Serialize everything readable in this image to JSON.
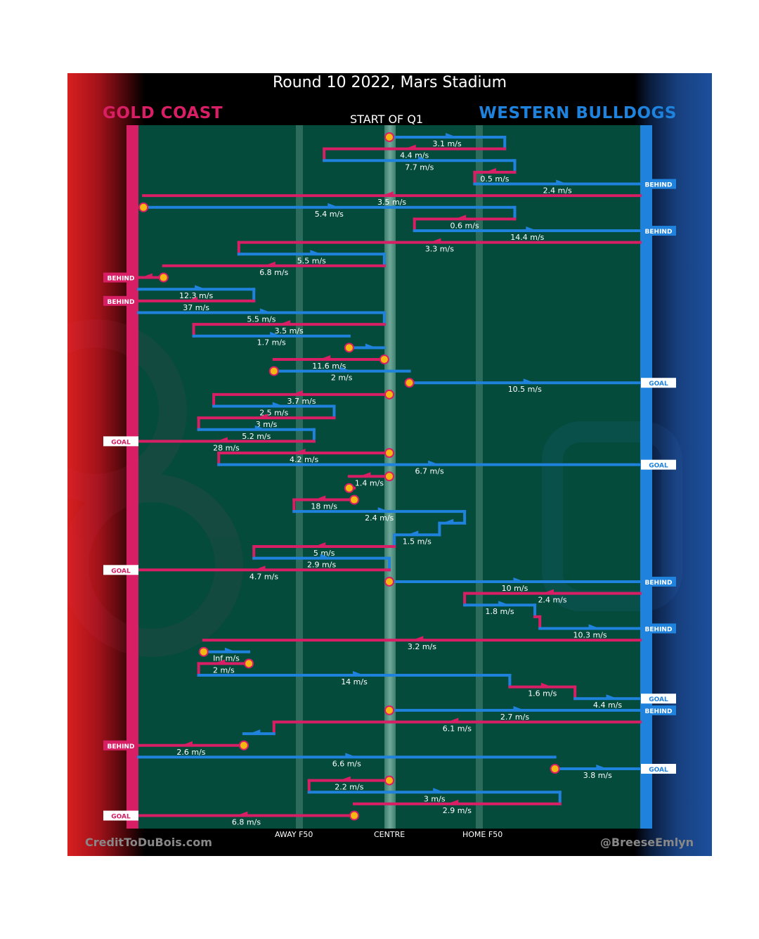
{
  "title": "Round 10 2022, Mars Stadium",
  "teams": {
    "left": "GOLD COAST",
    "right": "WESTERN BULLDOGS"
  },
  "start_label": "START OF Q1",
  "axis_labels": {
    "away": "AWAY F50",
    "centre": "CENTRE",
    "home": "HOME F50"
  },
  "credits": {
    "left": "CreditToDuBois.com",
    "right": "@BreeseEmlyn"
  },
  "colors": {
    "gold_coast": "#d81e64",
    "western_bulldogs": "#1f82dc",
    "field": "#044b3c",
    "marker": "#f5b813"
  },
  "chart_data": {
    "type": "chain-diagram",
    "x_axis": "field position (0 = Gold Coast end, 100 = Western Bulldogs end)",
    "x_ticks": [
      {
        "label": "AWAY F50",
        "x": 32
      },
      {
        "label": "CENTRE",
        "x": 50
      },
      {
        "label": "HOME F50",
        "x": 68
      }
    ],
    "segments": [
      {
        "team": "WB",
        "from": 50,
        "to": 73,
        "speed": "3.1 m/s",
        "start_marker": true
      },
      {
        "team": "GC",
        "from": 73,
        "to": 37,
        "speed": "4.4 m/s"
      },
      {
        "team": "WB",
        "from": 37,
        "to": 75,
        "speed": "7.7 m/s"
      },
      {
        "team": "GC",
        "from": 75,
        "to": 67,
        "speed": "0.5 m/s"
      },
      {
        "team": "WB",
        "from": 67,
        "to": 100,
        "speed": "2.4 m/s",
        "outcome": "BEHIND"
      },
      {
        "team": "GC",
        "from": 100,
        "to": 1,
        "speed": "3.5 m/s"
      },
      {
        "team": "WB",
        "from": 1,
        "to": 75,
        "speed": "5.4 m/s",
        "start_marker": true
      },
      {
        "team": "GC",
        "from": 75,
        "to": 55,
        "speed": "0.6 m/s"
      },
      {
        "team": "WB",
        "from": 55,
        "to": 100,
        "speed": "14.4 m/s",
        "outcome": "BEHIND"
      },
      {
        "team": "GC",
        "from": 100,
        "to": 20,
        "speed": "3.3 m/s"
      },
      {
        "team": "WB",
        "from": 20,
        "to": 49,
        "speed": "5.5 m/s"
      },
      {
        "team": "GC",
        "from": 49,
        "to": 5,
        "speed": "6.8 m/s"
      },
      {
        "team": "GC",
        "from": 5,
        "to": 0,
        "speed": "",
        "outcome": "BEHIND",
        "start_marker": true
      },
      {
        "team": "WB",
        "from": 0,
        "to": 23,
        "speed": "12.3 m/s"
      },
      {
        "team": "GC",
        "from": 23,
        "to": 0,
        "speed": "37 m/s",
        "outcome": "BEHIND"
      },
      {
        "team": "WB",
        "from": 0,
        "to": 49,
        "speed": "5.5 m/s"
      },
      {
        "team": "GC",
        "from": 49,
        "to": 11,
        "speed": "3.5 m/s"
      },
      {
        "team": "WB",
        "from": 11,
        "to": 42,
        "speed": "1.7 m/s"
      },
      {
        "team": "WB",
        "from": 42,
        "to": 49,
        "speed": "",
        "start_marker": true
      },
      {
        "team": "GC",
        "from": 49,
        "to": 27,
        "speed": "11.6 m/s",
        "start_marker": true
      },
      {
        "team": "WB",
        "from": 27,
        "to": 54,
        "speed": "2 m/s",
        "start_marker": true
      },
      {
        "team": "WB",
        "from": 54,
        "to": 100,
        "speed": "10.5 m/s",
        "outcome": "GOAL",
        "start_marker": true
      },
      {
        "team": "GC",
        "from": 50,
        "to": 15,
        "speed": "3.7 m/s",
        "start_marker": true
      },
      {
        "team": "WB",
        "from": 15,
        "to": 39,
        "speed": "2.5 m/s"
      },
      {
        "team": "GC",
        "from": 39,
        "to": 12,
        "speed": "3 m/s"
      },
      {
        "team": "WB",
        "from": 12,
        "to": 35,
        "speed": "5.2 m/s"
      },
      {
        "team": "GC",
        "from": 35,
        "to": 0,
        "speed": "28 m/s",
        "outcome": "GOAL"
      },
      {
        "team": "GC",
        "from": 50,
        "to": 16,
        "speed": "4.2 m/s",
        "start_marker": true
      },
      {
        "team": "WB",
        "from": 16,
        "to": 100,
        "speed": "6.7 m/s",
        "outcome": "GOAL"
      },
      {
        "team": "GC",
        "from": 50,
        "to": 42,
        "speed": "1.4 m/s",
        "start_marker": true
      },
      {
        "team": "GC",
        "from": 42,
        "to": 43,
        "speed": "",
        "start_marker": true
      },
      {
        "team": "GC",
        "from": 43,
        "to": 31,
        "speed": "18 m/s",
        "start_marker": true
      },
      {
        "team": "WB",
        "from": 31,
        "to": 65,
        "speed": "2.4 m/s"
      },
      {
        "team": "WB",
        "from": 65,
        "to": 60,
        "speed": ""
      },
      {
        "team": "WB",
        "from": 60,
        "to": 51,
        "speed": "1.5 m/s"
      },
      {
        "team": "GC",
        "from": 51,
        "to": 23,
        "speed": "5 m/s"
      },
      {
        "team": "WB",
        "from": 23,
        "to": 50,
        "speed": "2.9 m/s"
      },
      {
        "team": "GC",
        "from": 50,
        "to": 0,
        "speed": "4.7 m/s",
        "outcome": "GOAL"
      },
      {
        "team": "WB",
        "from": 50,
        "to": 100,
        "speed": "10 m/s",
        "outcome": "BEHIND",
        "start_marker": true
      },
      {
        "team": "GC",
        "from": 100,
        "to": 65,
        "speed": "2.4 m/s"
      },
      {
        "team": "WB",
        "from": 65,
        "to": 79,
        "speed": "1.8 m/s"
      },
      {
        "team": "GC",
        "from": 79,
        "to": 80,
        "speed": ""
      },
      {
        "team": "WB",
        "from": 80,
        "to": 100,
        "speed": "10.3 m/s",
        "outcome": "BEHIND"
      },
      {
        "team": "GC",
        "from": 100,
        "to": 13,
        "speed": "3.2 m/s"
      },
      {
        "team": "WB",
        "from": 13,
        "to": 22,
        "speed": "Inf m/s",
        "start_marker": true
      },
      {
        "team": "GC",
        "from": 22,
        "to": 12,
        "speed": "2 m/s",
        "start_marker": true
      },
      {
        "team": "WB",
        "from": 12,
        "to": 74,
        "speed": "14 m/s"
      },
      {
        "team": "GC",
        "from": 74,
        "to": 87,
        "speed": "1.6 m/s"
      },
      {
        "team": "WB",
        "from": 87,
        "to": 100,
        "speed": "4.4 m/s",
        "outcome": "GOAL"
      },
      {
        "team": "WB",
        "from": 50,
        "to": 100,
        "speed": "2.7 m/s",
        "outcome": "BEHIND",
        "start_marker": true
      },
      {
        "team": "GC",
        "from": 100,
        "to": 27,
        "speed": "6.1 m/s"
      },
      {
        "team": "WB",
        "from": 27,
        "to": 21,
        "speed": ""
      },
      {
        "team": "GC",
        "from": 21,
        "to": 0,
        "speed": "2.6 m/s",
        "outcome": "BEHIND",
        "start_marker": true
      },
      {
        "team": "WB",
        "from": 0,
        "to": 83,
        "speed": "6.6 m/s"
      },
      {
        "team": "WB",
        "from": 83,
        "to": 100,
        "speed": "3.8 m/s",
        "outcome": "GOAL",
        "start_marker": true
      },
      {
        "team": "GC",
        "from": 50,
        "to": 34,
        "speed": "2.2 m/s",
        "start_marker": true
      },
      {
        "team": "WB",
        "from": 34,
        "to": 84,
        "speed": "3 m/s"
      },
      {
        "team": "GC",
        "from": 84,
        "to": 43,
        "speed": "2.9 m/s"
      },
      {
        "team": "GC",
        "from": 43,
        "to": 0,
        "speed": "6.8 m/s",
        "outcome": "GOAL",
        "start_marker": true
      }
    ]
  }
}
